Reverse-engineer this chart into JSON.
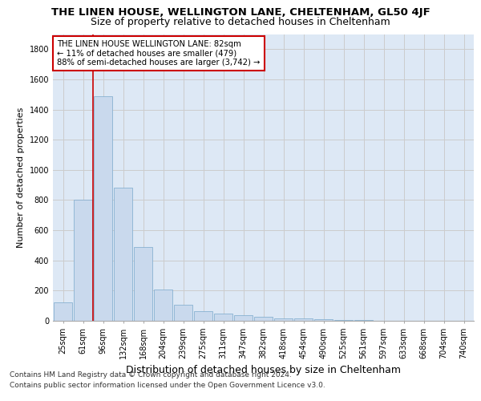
{
  "title": "THE LINEN HOUSE, WELLINGTON LANE, CHELTENHAM, GL50 4JF",
  "subtitle": "Size of property relative to detached houses in Cheltenham",
  "xlabel": "Distribution of detached houses by size in Cheltenham",
  "ylabel": "Number of detached properties",
  "categories": [
    "25sqm",
    "61sqm",
    "96sqm",
    "132sqm",
    "168sqm",
    "204sqm",
    "239sqm",
    "275sqm",
    "311sqm",
    "347sqm",
    "382sqm",
    "418sqm",
    "454sqm",
    "490sqm",
    "525sqm",
    "561sqm",
    "597sqm",
    "633sqm",
    "668sqm",
    "704sqm",
    "740sqm"
  ],
  "values": [
    120,
    800,
    1490,
    880,
    490,
    205,
    105,
    65,
    48,
    35,
    28,
    18,
    15,
    8,
    5,
    3,
    2,
    2,
    1,
    1,
    2
  ],
  "bar_color": "#c9d9ed",
  "bar_edge_color": "#7aa8cc",
  "vline_color": "#cc0000",
  "vline_x": 1.5,
  "annotation_title": "THE LINEN HOUSE WELLINGTON LANE: 82sqm",
  "annotation_line2": "← 11% of detached houses are smaller (479)",
  "annotation_line3": "88% of semi-detached houses are larger (3,742) →",
  "annotation_box_color": "#ffffff",
  "annotation_box_edge_color": "#cc0000",
  "ylim": [
    0,
    1900
  ],
  "yticks": [
    0,
    200,
    400,
    600,
    800,
    1000,
    1200,
    1400,
    1600,
    1800
  ],
  "grid_color": "#cccccc",
  "background_color": "#dde8f5",
  "footer_line1": "Contains HM Land Registry data © Crown copyright and database right 2024.",
  "footer_line2": "Contains public sector information licensed under the Open Government Licence v3.0.",
  "title_fontsize": 9.5,
  "subtitle_fontsize": 9,
  "tick_fontsize": 7,
  "ylabel_fontsize": 8,
  "xlabel_fontsize": 9
}
